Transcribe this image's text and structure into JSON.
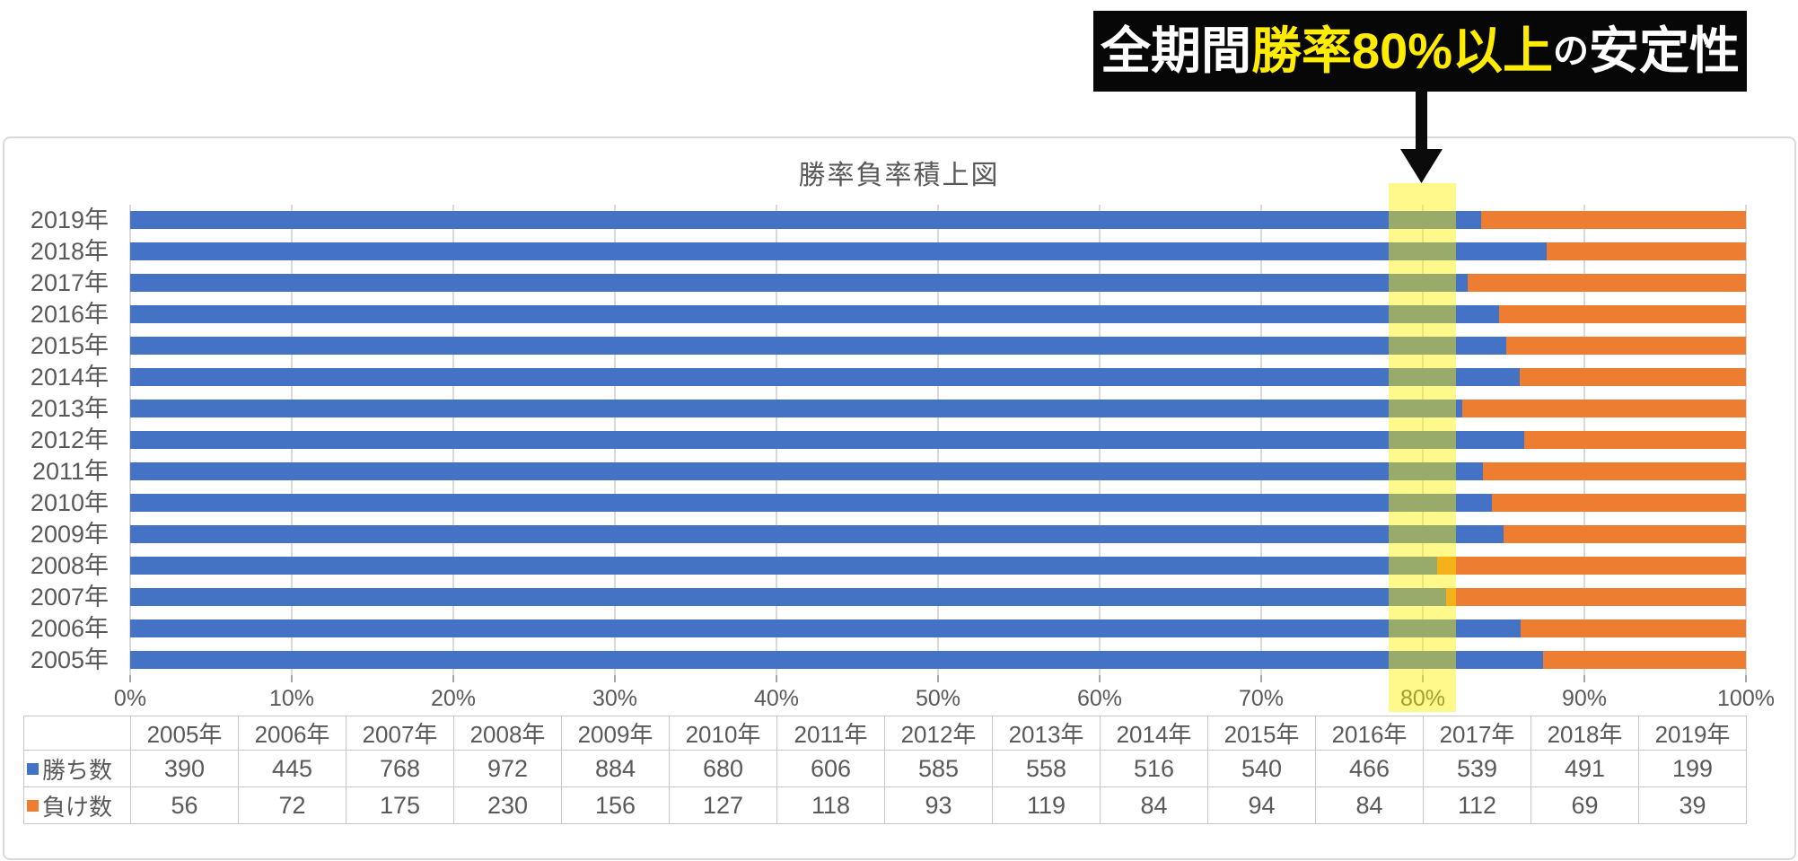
{
  "annotation": {
    "banner_parts": [
      {
        "text": "全期間",
        "style": "white"
      },
      {
        "text": "勝率80%以上",
        "style": "yellow"
      },
      {
        "text": "の",
        "style": "white-small"
      },
      {
        "text": "安定性",
        "style": "white"
      }
    ],
    "arrow": "down-arrow"
  },
  "chart_data": {
    "type": "bar",
    "variant": "100pct-stacked-horizontal",
    "title": "勝率負率積上図",
    "categories": [
      "2005年",
      "2006年",
      "2007年",
      "2008年",
      "2009年",
      "2010年",
      "2011年",
      "2012年",
      "2013年",
      "2014年",
      "2015年",
      "2016年",
      "2017年",
      "2018年",
      "2019年"
    ],
    "category_order_top_to_bottom": [
      "2019年",
      "2018年",
      "2017年",
      "2016年",
      "2015年",
      "2014年",
      "2013年",
      "2012年",
      "2011年",
      "2010年",
      "2009年",
      "2008年",
      "2007年",
      "2006年",
      "2005年"
    ],
    "series": [
      {
        "name": "勝ち数",
        "color": "#4472C4",
        "values": [
          390,
          445,
          768,
          972,
          884,
          680,
          606,
          585,
          558,
          516,
          540,
          466,
          539,
          491,
          199
        ]
      },
      {
        "name": "負け数",
        "color": "#ED7D31",
        "values": [
          56,
          72,
          175,
          230,
          156,
          127,
          118,
          93,
          119,
          84,
          94,
          84,
          112,
          69,
          39
        ]
      }
    ],
    "x_axis": {
      "tick_labels": [
        "0%",
        "10%",
        "20%",
        "30%",
        "40%",
        "50%",
        "60%",
        "70%",
        "80%",
        "90%",
        "100%"
      ],
      "range_pct": [
        0,
        100
      ],
      "grid": true
    },
    "legend_position": "table-row-labels",
    "highlight": {
      "tick": "80%",
      "band_color": "rgba(255,242,0,0.45)"
    },
    "table_shown_below_chart": true
  },
  "colors": {
    "win_blue": "#4472C4",
    "loss_orange": "#ED7D31",
    "banner_bg": "#070707",
    "banner_yellow": "#ffec00",
    "text_gray": "#595959",
    "grid_gray": "#D9D9D9",
    "table_border": "#C6C6C6"
  }
}
